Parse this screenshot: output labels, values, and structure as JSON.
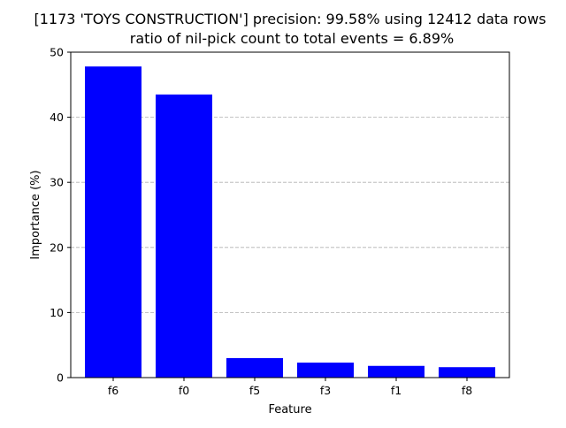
{
  "chart_data": {
    "type": "bar",
    "title": "[1173 'TOYS CONSTRUCTION'] precision: 99.58% using 12412 data rows",
    "subtitle": "ratio of nil-pick count to total events = 6.89%",
    "xlabel": "Feature",
    "ylabel": "Importance (%)",
    "categories": [
      "f6",
      "f0",
      "f5",
      "f3",
      "f1",
      "f8"
    ],
    "values": [
      47.8,
      43.5,
      3.0,
      2.3,
      1.8,
      1.6
    ],
    "ylim": [
      0,
      50
    ],
    "yticks": [
      0,
      10,
      20,
      30,
      40,
      50
    ],
    "grid": "y-dashed",
    "bar_color": "#0000ff",
    "grid_color": "#b0b0b0"
  }
}
